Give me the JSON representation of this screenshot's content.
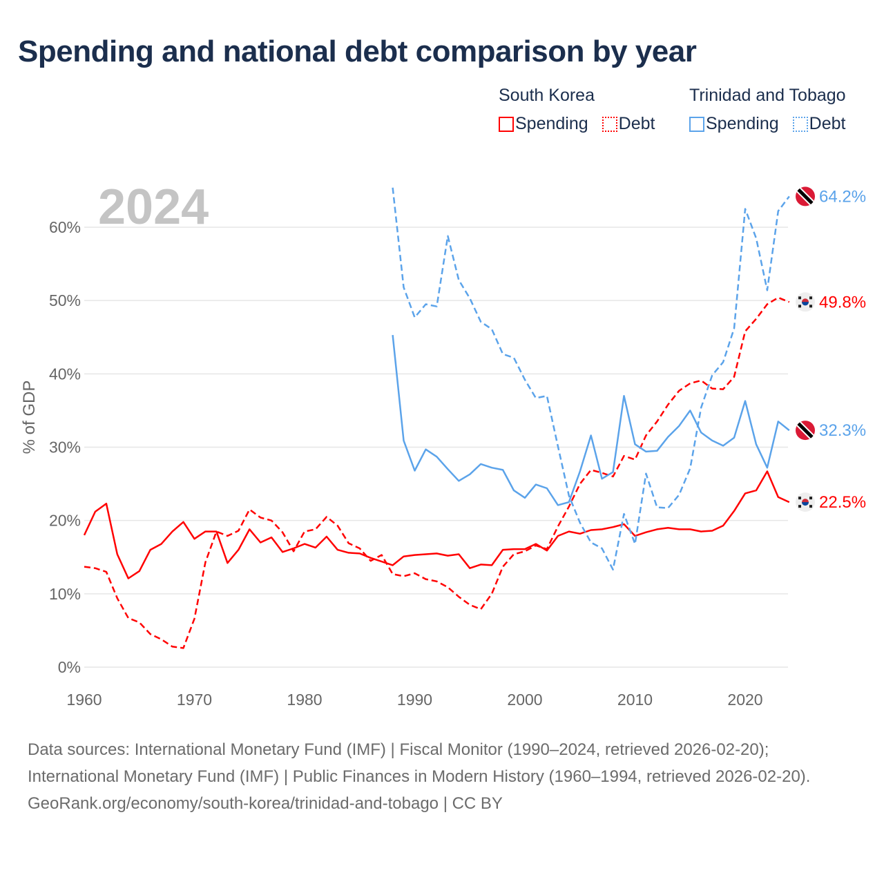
{
  "title": "Spending and national debt comparison by year",
  "legend": [
    {
      "country": "South Korea",
      "spending_label": "Spending",
      "debt_label": "Debt",
      "color": "#ff0000"
    },
    {
      "country": "Trinidad and Tobago",
      "spending_label": "Spending",
      "debt_label": "Debt",
      "color": "#5ba3ea"
    }
  ],
  "chart_data": {
    "type": "line",
    "title": "Spending and national debt comparison by year",
    "year_label": "2024",
    "xlabel": "",
    "ylabel": "% of GDP",
    "xlim": [
      1960,
      2024
    ],
    "ylim": [
      0,
      65
    ],
    "x_ticks": [
      1960,
      1970,
      1980,
      1990,
      2000,
      2010,
      2020
    ],
    "y_ticks": [
      0,
      10,
      20,
      30,
      40,
      50,
      60
    ],
    "y_tick_labels": [
      "0%",
      "10%",
      "20%",
      "30%",
      "40%",
      "50%",
      "60%"
    ],
    "grid": true,
    "series": [
      {
        "name": "South Korea Spending",
        "country": "South Korea",
        "measure": "Spending",
        "color": "#ff0000",
        "dash": false,
        "start": 1960,
        "end_label": "22.5%",
        "values": [
          18.0,
          21.2,
          22.3,
          15.4,
          12.1,
          13.1,
          16.0,
          16.8,
          18.5,
          19.8,
          17.5,
          18.5,
          18.5,
          14.2,
          16.0,
          18.8,
          17.0,
          17.7,
          15.7,
          16.2,
          16.8,
          16.3,
          17.8,
          16.0,
          15.6,
          15.5,
          14.9,
          14.4,
          13.9,
          15.1,
          15.3,
          15.4,
          15.5,
          15.2,
          15.4,
          13.5,
          14.0,
          13.9,
          16.0,
          16.1,
          16.1,
          16.8,
          15.9,
          17.9,
          18.5,
          18.2,
          18.7,
          18.8,
          19.1,
          19.5,
          17.9,
          18.4,
          18.8,
          19.0,
          18.8,
          18.8,
          18.5,
          18.6,
          19.3,
          21.3,
          23.7,
          24.1,
          26.7,
          23.2,
          22.5
        ]
      },
      {
        "name": "South Korea Debt",
        "country": "South Korea",
        "measure": "Debt",
        "color": "#ff0000",
        "dash": true,
        "start": 1960,
        "end_label": "49.8%",
        "values": [
          13.7,
          13.5,
          13.0,
          9.4,
          6.7,
          6.1,
          4.5,
          3.8,
          2.8,
          2.6,
          6.6,
          14.3,
          18.5,
          17.9,
          18.6,
          21.5,
          20.4,
          20.0,
          18.4,
          15.8,
          18.5,
          18.8,
          20.5,
          19.3,
          16.9,
          16.2,
          14.5,
          15.3,
          12.7,
          12.4,
          12.8,
          12.0,
          11.7,
          10.9,
          9.6,
          8.5,
          7.9,
          10.0,
          13.7,
          15.4,
          15.8,
          16.6,
          16.1,
          19.2,
          21.9,
          25.0,
          26.9,
          26.5,
          26.0,
          28.8,
          28.3,
          31.6,
          33.5,
          35.8,
          37.7,
          38.7,
          39.1,
          38.0,
          37.9,
          39.6,
          45.8,
          47.5,
          49.5,
          50.4,
          49.8
        ]
      },
      {
        "name": "Trinidad and Tobago Spending",
        "country": "Trinidad and Tobago",
        "measure": "Spending",
        "color": "#5ba3ea",
        "dash": false,
        "start": 1988,
        "end_label": "32.3%",
        "values": [
          45.3,
          30.9,
          26.8,
          29.7,
          28.7,
          27.0,
          25.4,
          26.3,
          27.7,
          27.2,
          26.9,
          24.1,
          23.1,
          24.9,
          24.4,
          22.1,
          22.5,
          26.7,
          31.6,
          25.7,
          26.6,
          37.0,
          30.4,
          29.4,
          29.5,
          31.4,
          32.9,
          35.0,
          32.0,
          30.9,
          30.2,
          31.3,
          36.3,
          30.4,
          27.2,
          33.5,
          32.3
        ]
      },
      {
        "name": "Trinidad and Tobago Debt",
        "country": "Trinidad and Tobago",
        "measure": "Debt",
        "color": "#5ba3ea",
        "dash": true,
        "start": 1988,
        "end_label": "64.2%",
        "values": [
          65.4,
          51.8,
          47.7,
          49.5,
          49.2,
          58.8,
          52.8,
          50.3,
          47.1,
          46.1,
          42.7,
          42.2,
          39.2,
          36.7,
          37.0,
          30.1,
          23.4,
          19.7,
          17.0,
          16.2,
          13.3,
          20.9,
          16.8,
          26.4,
          21.8,
          21.7,
          23.5,
          27.1,
          35.4,
          39.8,
          41.6,
          46.2,
          62.5,
          58.5,
          51.4,
          62.2,
          64.2
        ]
      }
    ]
  },
  "footer": {
    "sources": "Data sources: International Monetary Fund (IMF) | Fiscal Monitor (1990–2024, retrieved 2026-02-20); International Monetary Fund (IMF) | Public Finances in Modern History (1960–1994, retrieved 2026-02-20).",
    "credit": "GeoRank.org/economy/south-korea/trinidad-and-tobago | CC BY"
  }
}
